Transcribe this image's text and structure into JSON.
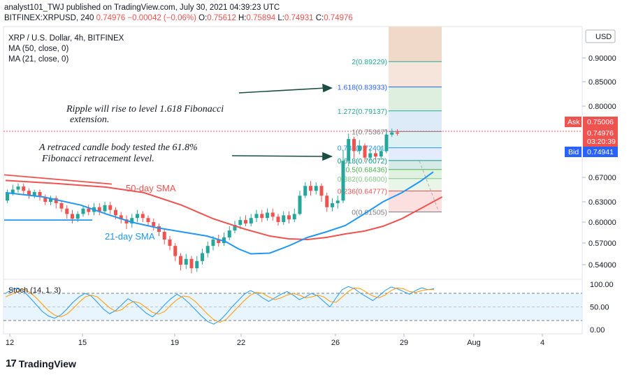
{
  "header": {
    "line1": "analyst101_TWJ published on TradingView.com, July 30, 2021 04:39:23 UTC",
    "symbol": "BITFINEX:XRPUSD, 240",
    "last": "0.74976",
    "change": "−0.00042 (−0.06%)",
    "o_label": "O:",
    "o": "0.75612",
    "h_label": "H:",
    "h": "0.75894",
    "l_label": "L:",
    "l": "0.74931",
    "c_label": "C:",
    "c": "0.74976"
  },
  "legend": {
    "title": "XRP / U.S. Dollar, 4h, BITFINEX",
    "ma50": "MA (50, close, 0)",
    "ma21": "MA (21, close, 0)"
  },
  "annotations": {
    "text1_line1": "Ripple will rise to level 1.618 Fibonacci",
    "text1_line2": "extension.",
    "text2_line1": "A retraced candle body tested the 61.8%",
    "text2_line2": "Fibonacci retracement level.",
    "sma50": "50-day SMA",
    "sma21": "21-day SMA"
  },
  "price_axis": {
    "currency": "USD",
    "ticks": [
      "0.90000",
      "0.85000",
      "0.80000",
      "0.67000",
      "0.63000",
      "0.60000",
      "0.57000",
      "0.54000"
    ],
    "ask_label": "Ask",
    "ask": "0.75006",
    "last": "0.74976",
    "countdown": "03:20:39",
    "bid_label": "Bid",
    "bid": "0.74941"
  },
  "stoch": {
    "title": "Stoch (14, 1, 3)",
    "ticks": [
      "100.00",
      "50.00",
      "0.00"
    ]
  },
  "time_axis": {
    "ticks": [
      "12",
      "15",
      "19",
      "22",
      "26",
      "29",
      "Aug",
      "4"
    ]
  },
  "brand": {
    "name": "TradingView",
    "logo": "17"
  },
  "colors": {
    "up": "#26a69a",
    "down": "#ef5350",
    "sma50": "#ef5350",
    "sma21": "#2196f3",
    "stoch_k": "#2196f3",
    "stoch_d": "#ff9800",
    "arrow": "#1b4d45"
  },
  "chart_data": {
    "type": "candlestick",
    "fib_levels": [
      {
        "label": "2(0.89229)",
        "ratio": 2,
        "value": 0.89229,
        "color": "#26a69a"
      },
      {
        "label": "1.618(0.83933)",
        "ratio": 1.618,
        "value": 0.83933,
        "color": "#2962ff"
      },
      {
        "label": "1.272(0.79137)",
        "ratio": 1.272,
        "value": 0.79137,
        "color": "#26a69a"
      },
      {
        "label": "1(0.75367)",
        "ratio": 1,
        "value": 0.75367,
        "color": "#787b86"
      },
      {
        "label": "0.786(0.72401)",
        "ratio": 0.786,
        "value": 0.72401,
        "color": "#2196f3"
      },
      {
        "label": "0.618(0.70072)",
        "ratio": 0.618,
        "value": 0.70072,
        "color": "#089981"
      },
      {
        "label": "0.5(0.68436)",
        "ratio": 0.5,
        "value": 0.68436,
        "color": "#4caf50"
      },
      {
        "label": "0.382(0.66800)",
        "ratio": 0.382,
        "value": 0.668,
        "color": "#81c784"
      },
      {
        "label": "0.236(0.64777)",
        "ratio": 0.236,
        "value": 0.64777,
        "color": "#ef5350"
      },
      {
        "label": "0(0.61505)",
        "ratio": 0,
        "value": 0.61505,
        "color": "#787b86"
      }
    ],
    "sma50": [
      [
        0,
        0.665
      ],
      [
        40,
        0.66
      ],
      [
        80,
        0.654
      ],
      [
        110,
        0.645
      ],
      [
        140,
        0.625
      ],
      [
        165,
        0.605
      ],
      [
        190,
        0.59
      ],
      [
        210,
        0.58
      ],
      [
        225,
        0.576
      ],
      [
        240,
        0.575
      ],
      [
        255,
        0.578
      ],
      [
        270,
        0.583
      ],
      [
        285,
        0.587
      ],
      [
        300,
        0.594
      ],
      [
        315,
        0.605
      ],
      [
        330,
        0.62
      ],
      [
        347,
        0.638
      ]
    ],
    "sma21": [
      [
        0,
        0.645
      ],
      [
        30,
        0.638
      ],
      [
        60,
        0.625
      ],
      [
        80,
        0.612
      ],
      [
        100,
        0.6
      ],
      [
        120,
        0.592
      ],
      [
        140,
        0.586
      ],
      [
        160,
        0.58
      ],
      [
        175,
        0.572
      ],
      [
        185,
        0.562
      ],
      [
        195,
        0.555
      ],
      [
        210,
        0.556
      ],
      [
        225,
        0.566
      ],
      [
        240,
        0.578
      ],
      [
        255,
        0.586
      ],
      [
        270,
        0.595
      ],
      [
        285,
        0.612
      ],
      [
        300,
        0.63
      ],
      [
        315,
        0.645
      ],
      [
        330,
        0.664
      ],
      [
        340,
        0.68
      ]
    ],
    "candles": [
      [
        0.632,
        0.644,
        0.65,
        0.628
      ],
      [
        0.644,
        0.65,
        0.658,
        0.64
      ],
      [
        0.65,
        0.655,
        0.66,
        0.645
      ],
      [
        0.655,
        0.648,
        0.66,
        0.642
      ],
      [
        0.648,
        0.64,
        0.652,
        0.635
      ],
      [
        0.64,
        0.646,
        0.65,
        0.636
      ],
      [
        0.646,
        0.638,
        0.65,
        0.632
      ],
      [
        0.638,
        0.63,
        0.642,
        0.625
      ],
      [
        0.63,
        0.636,
        0.64,
        0.625
      ],
      [
        0.636,
        0.628,
        0.64,
        0.62
      ],
      [
        0.628,
        0.62,
        0.632,
        0.615
      ],
      [
        0.62,
        0.612,
        0.625,
        0.605
      ],
      [
        0.612,
        0.605,
        0.618,
        0.598
      ],
      [
        0.605,
        0.612,
        0.616,
        0.6
      ],
      [
        0.612,
        0.62,
        0.624,
        0.608
      ],
      [
        0.62,
        0.615,
        0.626,
        0.61
      ],
      [
        0.615,
        0.622,
        0.628,
        0.61
      ],
      [
        0.622,
        0.616,
        0.628,
        0.61
      ],
      [
        0.616,
        0.625,
        0.63,
        0.612
      ],
      [
        0.625,
        0.618,
        0.63,
        0.612
      ],
      [
        0.618,
        0.61,
        0.622,
        0.604
      ],
      [
        0.61,
        0.604,
        0.615,
        0.598
      ],
      [
        0.604,
        0.598,
        0.61,
        0.59
      ],
      [
        0.598,
        0.606,
        0.612,
        0.592
      ],
      [
        0.606,
        0.612,
        0.618,
        0.6
      ],
      [
        0.612,
        0.606,
        0.616,
        0.6
      ],
      [
        0.606,
        0.6,
        0.61,
        0.594
      ],
      [
        0.6,
        0.594,
        0.605,
        0.588
      ],
      [
        0.594,
        0.586,
        0.598,
        0.58
      ],
      [
        0.586,
        0.575,
        0.59,
        0.568
      ],
      [
        0.575,
        0.566,
        0.58,
        0.56
      ],
      [
        0.566,
        0.552,
        0.57,
        0.545
      ],
      [
        0.552,
        0.54,
        0.556,
        0.532
      ],
      [
        0.54,
        0.548,
        0.555,
        0.534
      ],
      [
        0.548,
        0.535,
        0.552,
        0.528
      ],
      [
        0.535,
        0.545,
        0.552,
        0.53
      ],
      [
        0.545,
        0.556,
        0.562,
        0.54
      ],
      [
        0.556,
        0.566,
        0.572,
        0.55
      ],
      [
        0.566,
        0.575,
        0.58,
        0.56
      ],
      [
        0.575,
        0.57,
        0.582,
        0.565
      ],
      [
        0.57,
        0.578,
        0.585,
        0.566
      ],
      [
        0.578,
        0.588,
        0.594,
        0.574
      ],
      [
        0.588,
        0.596,
        0.602,
        0.584
      ],
      [
        0.596,
        0.603,
        0.608,
        0.59
      ],
      [
        0.603,
        0.598,
        0.61,
        0.594
      ],
      [
        0.598,
        0.606,
        0.612,
        0.594
      ],
      [
        0.606,
        0.612,
        0.618,
        0.6
      ],
      [
        0.612,
        0.606,
        0.618,
        0.6
      ],
      [
        0.606,
        0.614,
        0.62,
        0.602
      ],
      [
        0.614,
        0.608,
        0.62,
        0.602
      ],
      [
        0.608,
        0.6,
        0.612,
        0.595
      ],
      [
        0.6,
        0.61,
        0.616,
        0.596
      ],
      [
        0.61,
        0.604,
        0.616,
        0.598
      ],
      [
        0.604,
        0.612,
        0.62,
        0.6
      ],
      [
        0.612,
        0.64,
        0.648,
        0.61
      ],
      [
        0.64,
        0.656,
        0.662,
        0.636
      ],
      [
        0.656,
        0.648,
        0.664,
        0.64
      ],
      [
        0.648,
        0.656,
        0.662,
        0.642
      ],
      [
        0.656,
        0.64,
        0.66,
        0.63
      ],
      [
        0.64,
        0.622,
        0.645,
        0.615
      ],
      [
        0.622,
        0.628,
        0.636,
        0.616
      ],
      [
        0.628,
        0.632,
        0.64,
        0.62
      ],
      [
        0.632,
        0.7,
        0.72,
        0.628
      ],
      [
        0.7,
        0.74,
        0.75,
        0.69
      ],
      [
        0.74,
        0.718,
        0.744,
        0.705
      ],
      [
        0.718,
        0.728,
        0.738,
        0.712
      ],
      [
        0.728,
        0.706,
        0.732,
        0.698
      ],
      [
        0.706,
        0.714,
        0.722,
        0.7
      ],
      [
        0.714,
        0.708,
        0.72,
        0.702
      ],
      [
        0.708,
        0.718,
        0.726,
        0.704
      ],
      [
        0.718,
        0.748,
        0.758,
        0.714
      ],
      [
        0.748,
        0.752,
        0.759,
        0.744
      ],
      [
        0.752,
        0.75,
        0.758,
        0.746
      ]
    ],
    "stoch_k": [
      80,
      88,
      92,
      84,
      70,
      55,
      40,
      30,
      25,
      32,
      45,
      60,
      72,
      80,
      74,
      60,
      45,
      35,
      42,
      55,
      68,
      60,
      48,
      36,
      28,
      40,
      55,
      68,
      78,
      70,
      58,
      44,
      30,
      18,
      12,
      20,
      34,
      50,
      64,
      78,
      86,
      80,
      70,
      62,
      70,
      78,
      84,
      76,
      66,
      72,
      80,
      74,
      62,
      50,
      70,
      88,
      95,
      90,
      80,
      72,
      64,
      74,
      86,
      94,
      90,
      84,
      78,
      86,
      92,
      88,
      90
    ],
    "stoch_d": [
      72,
      78,
      84,
      88,
      82,
      70,
      56,
      42,
      32,
      28,
      34,
      46,
      60,
      72,
      76,
      72,
      60,
      48,
      40,
      44,
      56,
      62,
      58,
      48,
      38,
      34,
      40,
      54,
      66,
      74,
      72,
      62,
      48,
      34,
      22,
      16,
      22,
      36,
      50,
      64,
      76,
      82,
      80,
      72,
      66,
      70,
      76,
      80,
      76,
      70,
      72,
      76,
      72,
      62,
      60,
      72,
      84,
      92,
      90,
      82,
      74,
      70,
      76,
      86,
      92,
      90,
      84,
      82,
      86,
      88,
      88
    ]
  }
}
